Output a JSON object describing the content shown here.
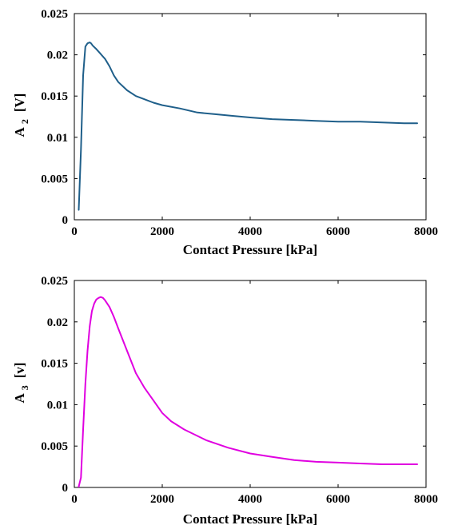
{
  "chart_data": [
    {
      "type": "line",
      "xlabel": "Contact Pressure [kPa]",
      "ylabel": {
        "base": "A",
        "sub": "2",
        "unit": "[V]"
      },
      "xlim": [
        0,
        8000
      ],
      "ylim": [
        0,
        0.025
      ],
      "xticks": [
        "0",
        "2000",
        "4000",
        "6000",
        "8000"
      ],
      "yticks": [
        "0",
        "0.005",
        "0.01",
        "0.015",
        "0.02",
        "0.025"
      ],
      "grid": false,
      "series": [
        {
          "color": "#1f5f8a",
          "x": [
            100,
            150,
            200,
            250,
            300,
            350,
            380,
            420,
            500,
            600,
            700,
            800,
            900,
            1000,
            1200,
            1400,
            1600,
            1800,
            2000,
            2400,
            2800,
            3200,
            3600,
            4000,
            4500,
            5000,
            5500,
            6000,
            6500,
            7000,
            7500,
            7800
          ],
          "y": [
            0.0012,
            0.0085,
            0.0175,
            0.021,
            0.0214,
            0.0215,
            0.0214,
            0.0211,
            0.0207,
            0.0201,
            0.0195,
            0.0186,
            0.0175,
            0.0167,
            0.0157,
            0.015,
            0.0146,
            0.0142,
            0.0139,
            0.0135,
            0.013,
            0.0128,
            0.0126,
            0.0124,
            0.0122,
            0.0121,
            0.012,
            0.0119,
            0.0119,
            0.0118,
            0.0117,
            0.0117
          ]
        }
      ]
    },
    {
      "type": "line",
      "xlabel": "Contact Pressure [kPa]",
      "ylabel": {
        "base": "A",
        "sub": "3",
        "unit": "[v]"
      },
      "xlim": [
        0,
        8000
      ],
      "ylim": [
        0,
        0.025
      ],
      "xticks": [
        "0",
        "2000",
        "4000",
        "6000",
        "8000"
      ],
      "yticks": [
        "0",
        "0.005",
        "0.01",
        "0.015",
        "0.02",
        "0.025"
      ],
      "grid": false,
      "series": [
        {
          "color": "#e000e0",
          "x": [
            100,
            150,
            200,
            250,
            300,
            350,
            400,
            450,
            500,
            550,
            600,
            650,
            700,
            800,
            900,
            1000,
            1200,
            1400,
            1600,
            1800,
            2000,
            2200,
            2500,
            3000,
            3500,
            4000,
            4500,
            5000,
            5500,
            6000,
            6500,
            7000,
            7500,
            7800
          ],
          "y": [
            0.0001,
            0.0012,
            0.007,
            0.0125,
            0.0165,
            0.0195,
            0.0213,
            0.0222,
            0.0227,
            0.0229,
            0.023,
            0.0229,
            0.0226,
            0.0218,
            0.0206,
            0.0192,
            0.0165,
            0.0138,
            0.012,
            0.0105,
            0.009,
            0.008,
            0.007,
            0.0057,
            0.0048,
            0.0041,
            0.0037,
            0.0033,
            0.0031,
            0.003,
            0.0029,
            0.0028,
            0.0028,
            0.0028
          ]
        }
      ]
    }
  ]
}
